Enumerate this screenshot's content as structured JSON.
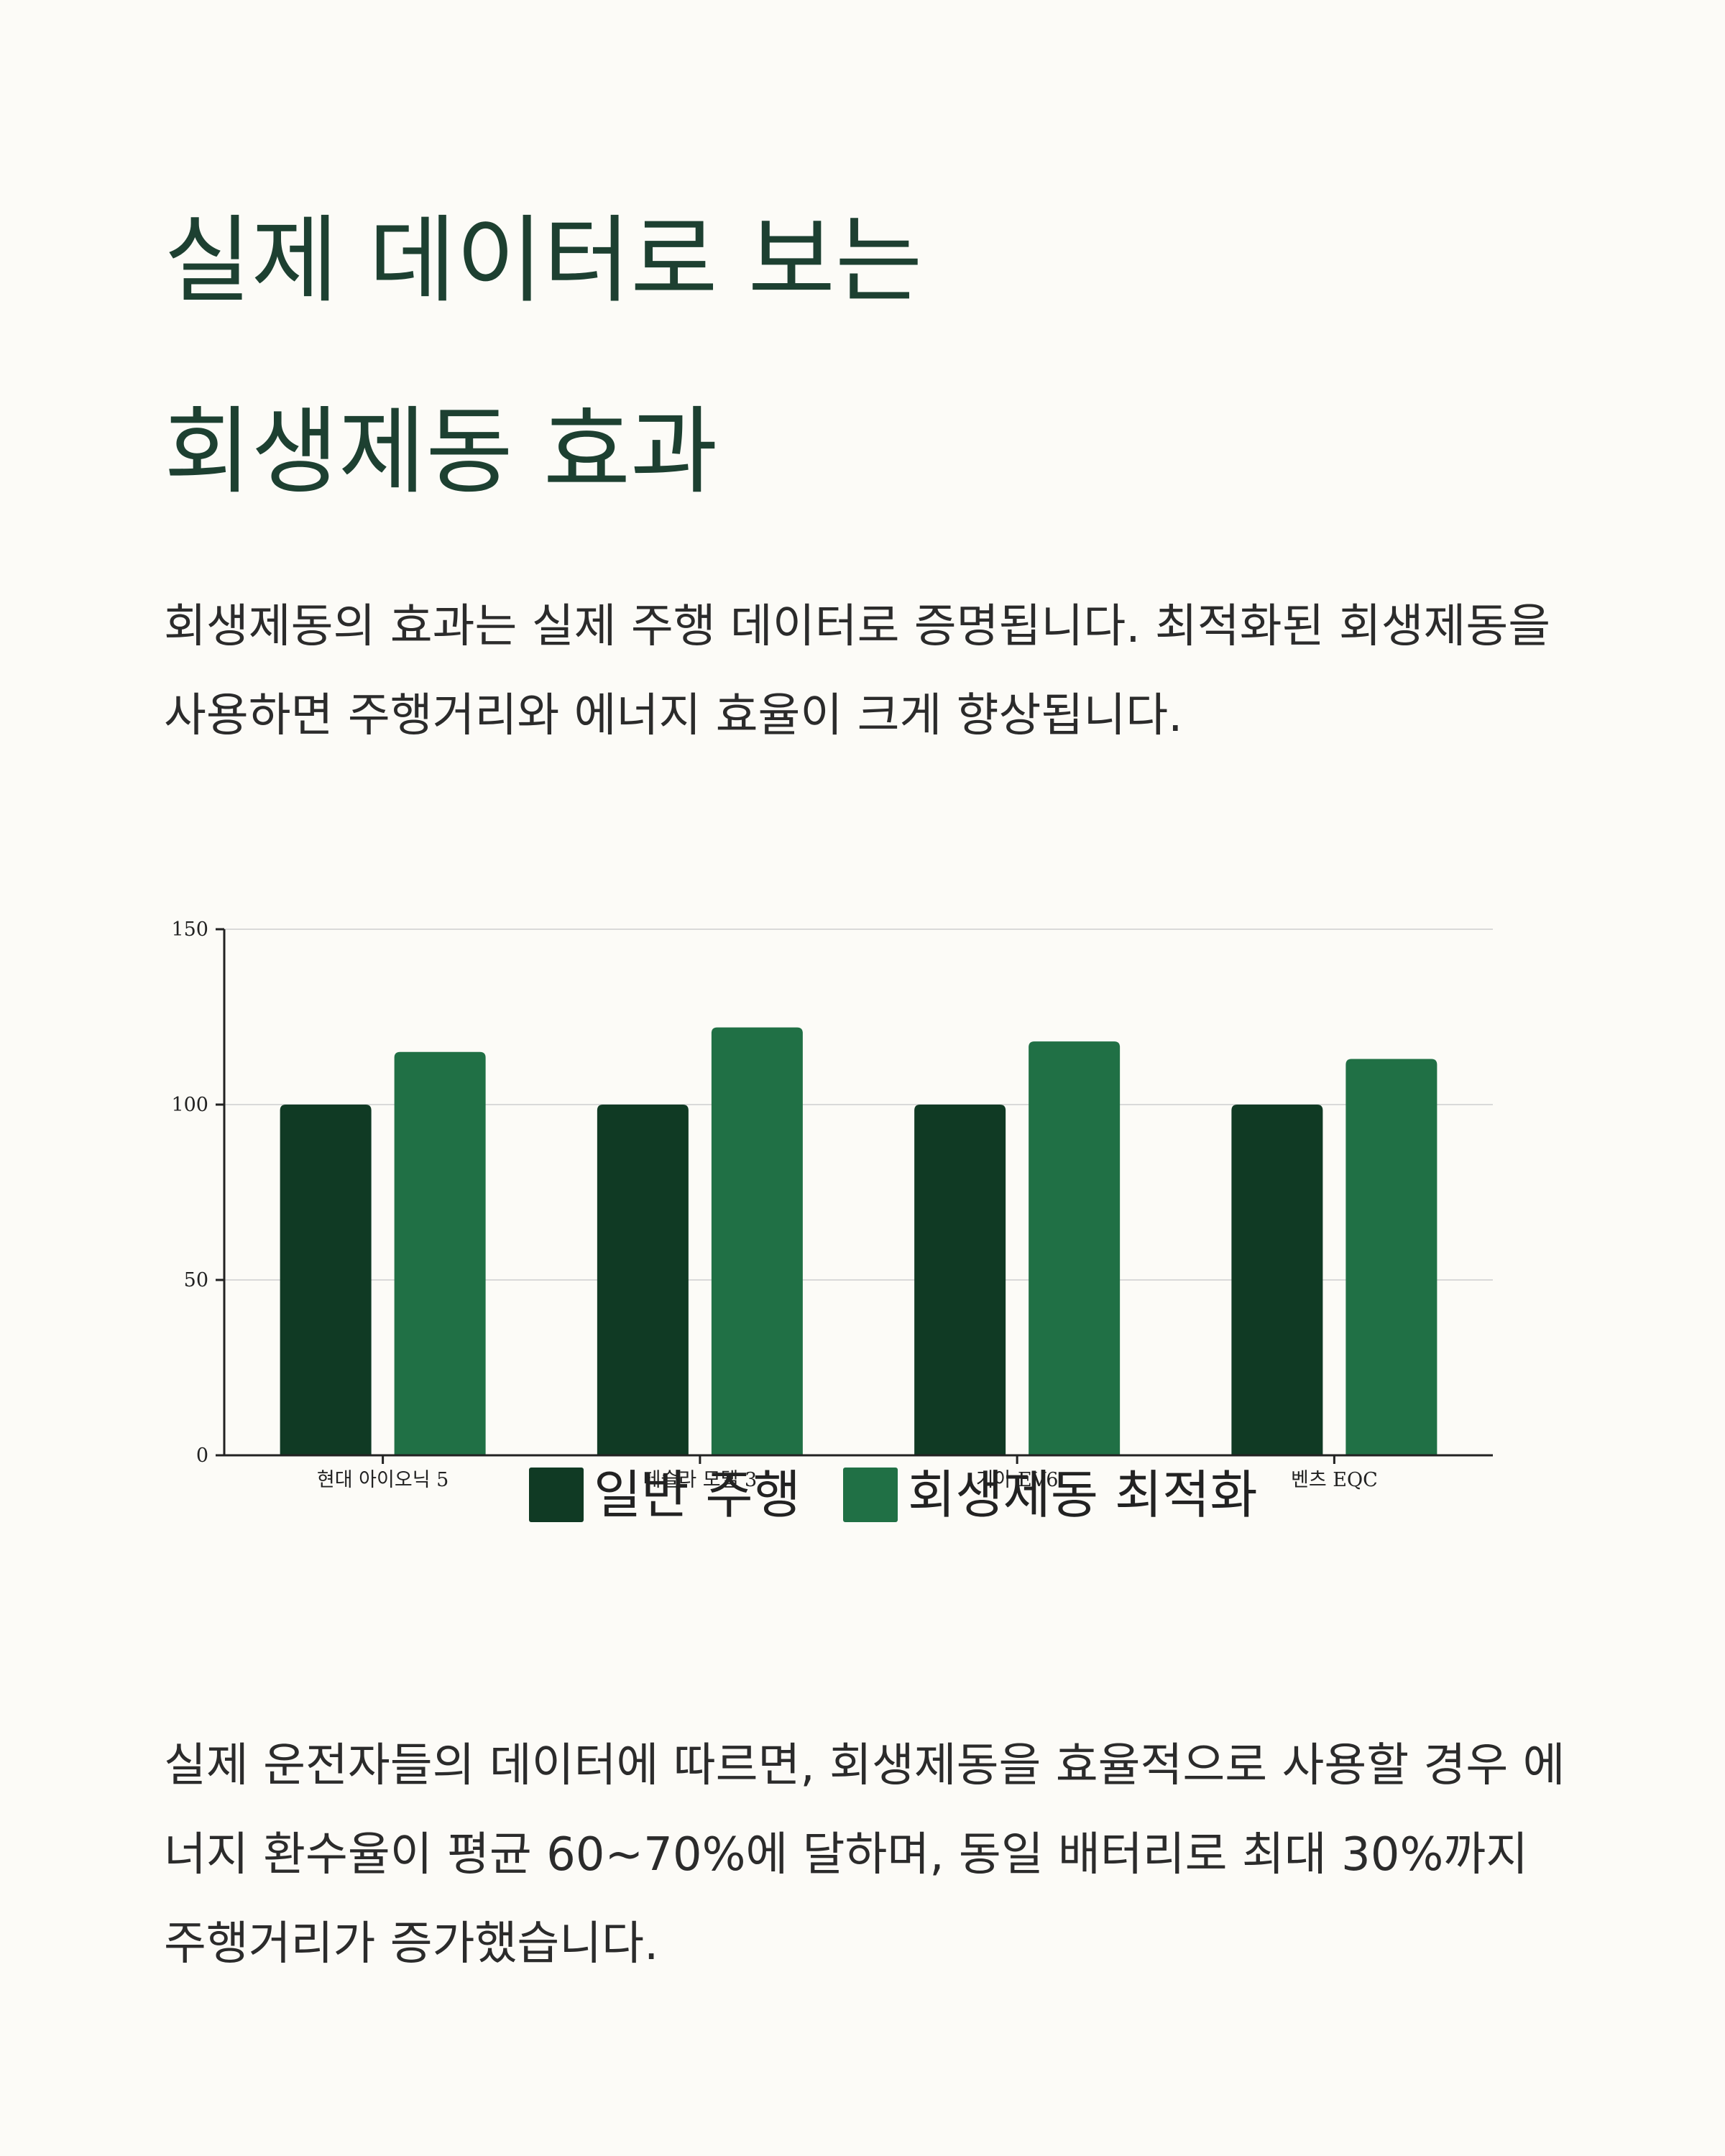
{
  "page": {
    "title_line1": "실제 데이터로 보는",
    "title_line2": "회생제동 효과",
    "intro": "회생제동의 효과는 실제 주행 데이터로 증명됩니다. 최적화된 회생제동을 사용하면 주행거리와 에너지 효율이 크게 향상됩니다.",
    "outro": "실제 운전자들의 데이터에 따르면, 회생제동을 효율적으로 사용할 경우 에너지 환수율이 평균 60~70%에 달하며, 동일 배터리로 최대 30%까지 주행거리가 증가했습니다."
  },
  "colors": {
    "background": "#fcfbf7",
    "title": "#1d4031",
    "series1": "#103a24",
    "series2": "#207045",
    "grid": "#d9d9d9",
    "axis": "#222222"
  },
  "chart_data": {
    "type": "bar",
    "title": "",
    "xlabel": "",
    "ylabel": "",
    "categories": [
      "현대 아이오닉 5",
      "테슬라 모델 3",
      "기아 EV6",
      "벤츠 EQC"
    ],
    "series": [
      {
        "name": "일반 주행",
        "values": [
          100,
          100,
          100,
          100
        ]
      },
      {
        "name": "회생제동 최적화",
        "values": [
          115,
          122,
          118,
          113
        ]
      }
    ],
    "ylim": [
      0,
      150
    ],
    "yticks": [
      "0",
      "50",
      "100",
      "150"
    ],
    "grid": true,
    "legend": "bottom-center"
  }
}
